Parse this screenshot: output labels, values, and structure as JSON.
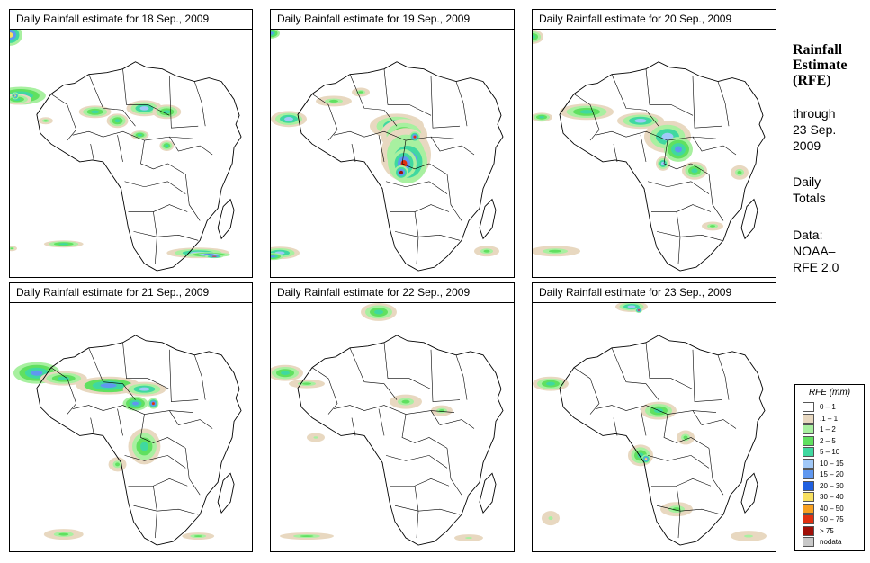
{
  "panels": [
    {
      "title": "Daily Rainfall estimate for  18 Sep., 2009"
    },
    {
      "title": "Daily Rainfall estimate for  19 Sep., 2009"
    },
    {
      "title": "Daily Rainfall estimate for  20 Sep., 2009"
    },
    {
      "title": "Daily Rainfall estimate for  21 Sep., 2009"
    },
    {
      "title": "Daily Rainfall estimate for  22 Sep., 2009"
    },
    {
      "title": "Daily Rainfall estimate for  23 Sep., 2009"
    }
  ],
  "sidebar": {
    "title_lines": [
      "Rainfall",
      "Estimate",
      "(RFE)"
    ],
    "through_label": "through",
    "date_lines": [
      "23 Sep.",
      "2009"
    ],
    "totals_lines": [
      "Daily",
      "Totals"
    ],
    "data_lines": [
      "Data:",
      "NOAA–",
      "RFE 2.0"
    ]
  },
  "legend": {
    "title": "RFE (mm)",
    "items": [
      {
        "label": "0 – 1",
        "color": "#ffffff"
      },
      {
        "label": ".1 – 1",
        "color": "#e8d8c0"
      },
      {
        "label": "1 – 2",
        "color": "#a8f0a0"
      },
      {
        "label": "2 – 5",
        "color": "#60e060"
      },
      {
        "label": "5 – 10",
        "color": "#40d8a0"
      },
      {
        "label": "10 – 15",
        "color": "#a0c8f8"
      },
      {
        "label": "15 – 20",
        "color": "#6098f0"
      },
      {
        "label": "20 – 30",
        "color": "#2060e0"
      },
      {
        "label": "30 – 40",
        "color": "#f8e060"
      },
      {
        "label": "40 – 50",
        "color": "#f8a020"
      },
      {
        "label": "50 – 75",
        "color": "#e03010"
      },
      {
        "label": "> 75",
        "color": "#a01008"
      },
      {
        "label": "nodata",
        "color": "#c8c8c8"
      }
    ]
  }
}
